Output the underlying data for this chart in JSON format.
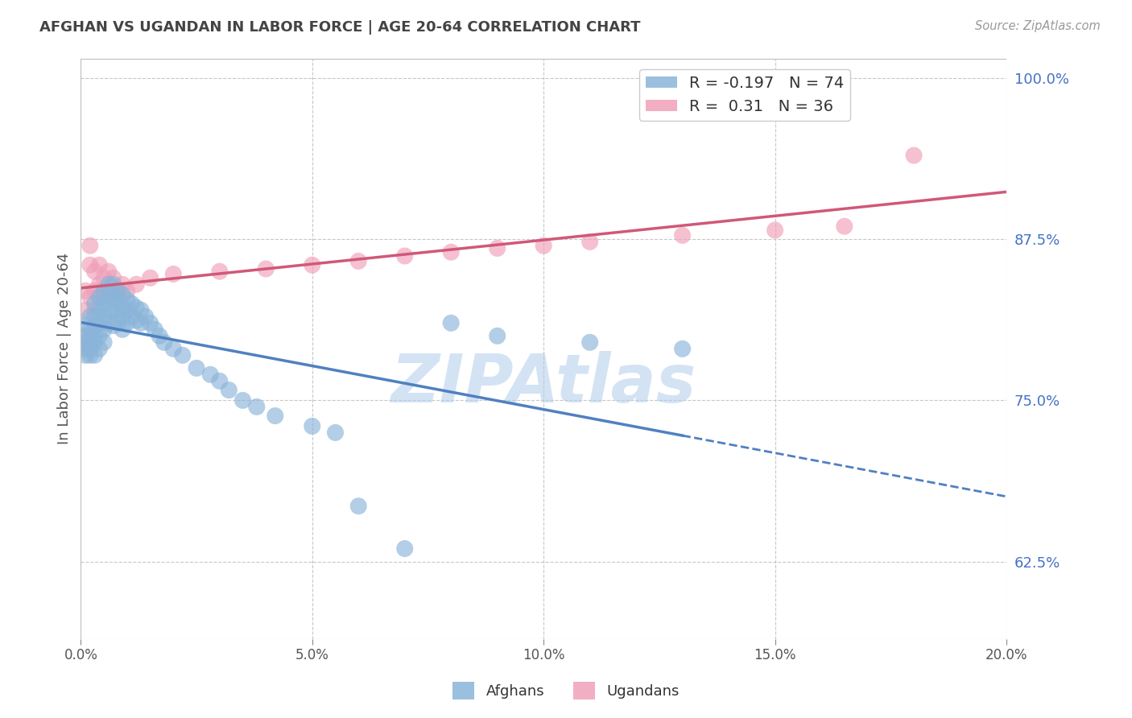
{
  "title": "AFGHAN VS UGANDAN IN LABOR FORCE | AGE 20-64 CORRELATION CHART",
  "source": "Source: ZipAtlas.com",
  "ylabel": "In Labor Force | Age 20-64",
  "xlim": [
    0.0,
    0.2
  ],
  "ylim": [
    0.565,
    1.015
  ],
  "yticks": [
    0.625,
    0.75,
    0.875,
    1.0
  ],
  "ytick_labels": [
    "62.5%",
    "75.0%",
    "87.5%",
    "100.0%"
  ],
  "xticks": [
    0.0,
    0.05,
    0.1,
    0.15,
    0.2
  ],
  "xtick_labels": [
    "0.0%",
    "5.0%",
    "10.0%",
    "15.0%",
    "20.0%"
  ],
  "afghan_R": -0.197,
  "afghan_N": 74,
  "ugandan_R": 0.31,
  "ugandan_N": 36,
  "afghan_color": "#8ab4d9",
  "ugandan_color": "#f0a0b8",
  "afghan_line_color": "#5080c0",
  "ugandan_line_color": "#d05878",
  "watermark": "ZIPAtlas",
  "watermark_color": "#b0ccec",
  "background_color": "#ffffff",
  "grid_color": "#c8c8c8",
  "axis_label_color": "#4472c4",
  "title_color": "#444444",
  "afghan_x": [
    0.001,
    0.001,
    0.001,
    0.001,
    0.001,
    0.002,
    0.002,
    0.002,
    0.002,
    0.002,
    0.002,
    0.003,
    0.003,
    0.003,
    0.003,
    0.003,
    0.003,
    0.004,
    0.004,
    0.004,
    0.004,
    0.004,
    0.005,
    0.005,
    0.005,
    0.005,
    0.005,
    0.006,
    0.006,
    0.006,
    0.006,
    0.007,
    0.007,
    0.007,
    0.007,
    0.008,
    0.008,
    0.008,
    0.008,
    0.009,
    0.009,
    0.009,
    0.009,
    0.01,
    0.01,
    0.01,
    0.011,
    0.011,
    0.012,
    0.012,
    0.013,
    0.013,
    0.014,
    0.015,
    0.016,
    0.017,
    0.018,
    0.02,
    0.022,
    0.025,
    0.028,
    0.03,
    0.032,
    0.035,
    0.038,
    0.042,
    0.05,
    0.055,
    0.06,
    0.07,
    0.08,
    0.09,
    0.11,
    0.13
  ],
  "afghan_y": [
    0.8,
    0.79,
    0.808,
    0.795,
    0.785,
    0.815,
    0.805,
    0.8,
    0.795,
    0.79,
    0.785,
    0.825,
    0.815,
    0.808,
    0.8,
    0.795,
    0.785,
    0.83,
    0.82,
    0.81,
    0.8,
    0.79,
    0.835,
    0.825,
    0.815,
    0.805,
    0.795,
    0.84,
    0.83,
    0.82,
    0.81,
    0.84,
    0.83,
    0.82,
    0.808,
    0.835,
    0.828,
    0.82,
    0.81,
    0.832,
    0.822,
    0.815,
    0.805,
    0.828,
    0.82,
    0.81,
    0.825,
    0.815,
    0.822,
    0.812,
    0.82,
    0.81,
    0.815,
    0.81,
    0.805,
    0.8,
    0.795,
    0.79,
    0.785,
    0.775,
    0.77,
    0.765,
    0.758,
    0.75,
    0.745,
    0.738,
    0.73,
    0.725,
    0.668,
    0.635,
    0.81,
    0.8,
    0.795,
    0.79
  ],
  "ugandan_x": [
    0.001,
    0.001,
    0.002,
    0.002,
    0.002,
    0.003,
    0.003,
    0.003,
    0.004,
    0.004,
    0.004,
    0.005,
    0.005,
    0.006,
    0.006,
    0.007,
    0.007,
    0.008,
    0.009,
    0.01,
    0.012,
    0.015,
    0.02,
    0.03,
    0.04,
    0.05,
    0.06,
    0.07,
    0.08,
    0.09,
    0.1,
    0.11,
    0.13,
    0.15,
    0.165,
    0.18
  ],
  "ugandan_y": [
    0.835,
    0.82,
    0.87,
    0.855,
    0.83,
    0.85,
    0.835,
    0.82,
    0.855,
    0.84,
    0.83,
    0.845,
    0.83,
    0.85,
    0.835,
    0.845,
    0.83,
    0.835,
    0.84,
    0.835,
    0.84,
    0.845,
    0.848,
    0.85,
    0.852,
    0.855,
    0.858,
    0.862,
    0.865,
    0.868,
    0.87,
    0.873,
    0.878,
    0.882,
    0.885,
    0.94
  ],
  "afghan_line_x_solid_start": 0.0,
  "afghan_line_x_solid_end": 0.13,
  "afghan_line_x_dash_end": 0.2,
  "ugandan_line_x_start": 0.0,
  "ugandan_line_x_end": 0.2
}
